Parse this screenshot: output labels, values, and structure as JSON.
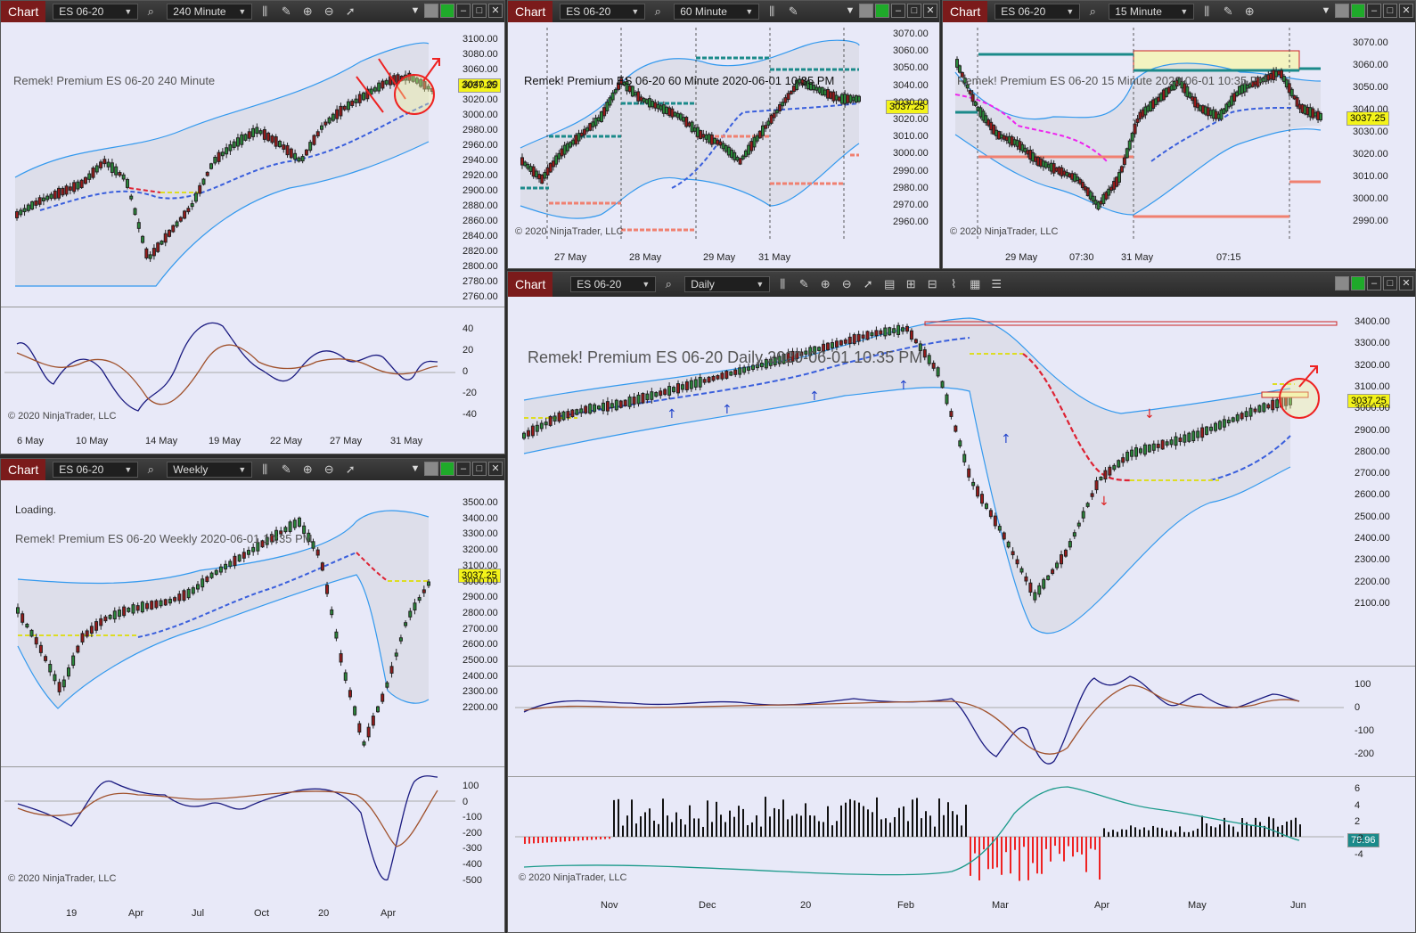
{
  "chart_windows": {
    "w240": {
      "tab_label": "Chart",
      "instrument": "ES 06-20",
      "interval": "240 Minute",
      "title": "Remek!  Premium  ES 06-20  240 Minute",
      "copyright": "© 2020 NinjaTrader, LLC",
      "price_tag": "3037.25",
      "y_ticks": [
        "3100.00",
        "3080.00",
        "3060.00",
        "3040.00",
        "3020.00",
        "3000.00",
        "2980.00",
        "2960.00",
        "2940.00",
        "2920.00",
        "2900.00",
        "2880.00",
        "2860.00",
        "2840.00",
        "2820.00",
        "2800.00",
        "2780.00",
        "2760.00"
      ],
      "osc_ticks": [
        "40",
        "20",
        "0",
        "-20",
        "-40"
      ],
      "x_labels": [
        "6 May",
        "10 May",
        "14 May",
        "19 May",
        "22 May",
        "27 May",
        "31 May"
      ]
    },
    "w60": {
      "tab_label": "Chart",
      "instrument": "ES 06-20",
      "interval": "60 Minute",
      "title": "Remek!  Premium  ES 06-20  60 Minute  2020-06-01 10:35 PM",
      "copyright": "© 2020 NinjaTrader, LLC",
      "price_tag": "3037.25",
      "y_ticks": [
        "3070.00",
        "3060.00",
        "3050.00",
        "3040.00",
        "3030.00",
        "3020.00",
        "3010.00",
        "3000.00",
        "2990.00",
        "2980.00",
        "2970.00",
        "2960.00"
      ],
      "x_labels": [
        "27 May",
        "28 May",
        "29 May",
        "31 May"
      ]
    },
    "w15": {
      "tab_label": "Chart",
      "instrument": "ES 06-20",
      "interval": "15 Minute",
      "title": "Remek!  Premium  ES 06-20  15 Minute  2020-06-01 10:35 PM",
      "copyright": "© 2020 NinjaTrader, LLC",
      "price_tag": "3037.25",
      "y_ticks": [
        "3070.00",
        "3060.00",
        "3050.00",
        "3040.00",
        "3030.00",
        "3020.00",
        "3010.00",
        "3000.00",
        "2990.00"
      ],
      "x_labels": [
        "29 May",
        "07:30",
        "31 May",
        "07:15"
      ]
    },
    "wweekly": {
      "tab_label": "Chart",
      "instrument": "ES 06-20",
      "interval": "Weekly",
      "loading": "Loading.",
      "title": "Remek!  Premium  ES 06-20  Weekly  2020-06-01 10:35 PM",
      "copyright": "© 2020 NinjaTrader, LLC",
      "price_tag": "3037.25",
      "y_ticks": [
        "3500.00",
        "3400.00",
        "3300.00",
        "3200.00",
        "3100.00",
        "3000.00",
        "2900.00",
        "2800.00",
        "2700.00",
        "2600.00",
        "2500.00",
        "2400.00",
        "2300.00",
        "2200.00"
      ],
      "osc_ticks": [
        "100",
        "0",
        "-100",
        "-200",
        "-300",
        "-400",
        "-500"
      ],
      "x_labels": [
        "19",
        "Apr",
        "Jul",
        "Oct",
        "20",
        "Apr"
      ]
    },
    "wdaily": {
      "tab_label": "Chart",
      "instrument": "ES 06-20",
      "interval": "Daily",
      "title": "Remek!  Premium  ES 06-20  Daily  2020-06-01 10:35 PM",
      "copyright": "© 2020 NinjaTrader, LLC",
      "price_tag": "3037.25",
      "osc_tag": "79.96",
      "y_ticks": [
        "3400.00",
        "3300.00",
        "3200.00",
        "3100.00",
        "3000.00",
        "2900.00",
        "2800.00",
        "2700.00",
        "2600.00",
        "2500.00",
        "2400.00",
        "2300.00",
        "2200.00",
        "2100.00"
      ],
      "osc_ticks": [
        "100",
        "0",
        "-100",
        "-200"
      ],
      "hist_ticks": [
        "6",
        "4",
        "2",
        "-2",
        "-4"
      ],
      "x_labels": [
        "Nov",
        "Dec",
        "20",
        "Feb",
        "Mar",
        "Apr",
        "May",
        "Jun"
      ]
    }
  },
  "colors": {
    "chart_tab": "#7b1b1b",
    "background": "#e8e9f8",
    "band": "#3399ee",
    "ma_blue": "#3a5fdc",
    "ma_red": "#dd2233",
    "ma_yellow": "#eeee22",
    "osc_blue": "#1a1a80",
    "osc_brown": "#a0522d",
    "price_tag": "#f3f31a"
  }
}
